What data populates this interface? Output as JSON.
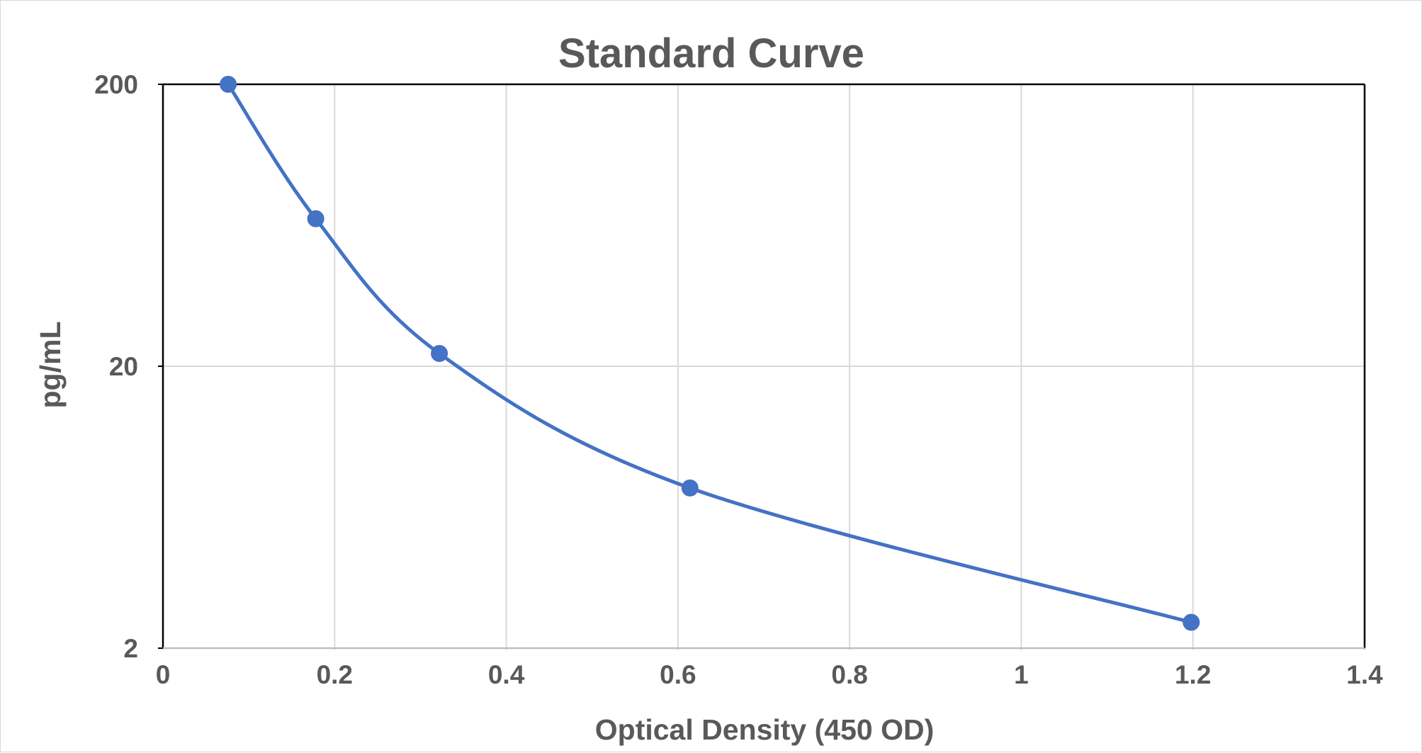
{
  "chart_data": {
    "type": "scatter",
    "title": "Standard Curve",
    "xlabel": "Optical Density (450 OD)",
    "ylabel": "pg/mL",
    "xlim": [
      0,
      1.4
    ],
    "ylim": [
      2,
      200
    ],
    "yscale": "log",
    "grid": true,
    "legend": "none",
    "smoothed_line": true,
    "x_ticks": [
      "0",
      "0.2",
      "0.4",
      "0.6",
      "0.8",
      "1",
      "1.2",
      "1.4"
    ],
    "x_tick_values": [
      0,
      0.2,
      0.4,
      0.6,
      0.8,
      1.0,
      1.2,
      1.4
    ],
    "y_ticks": [
      "2",
      "20",
      "200"
    ],
    "y_tick_values": [
      2,
      20,
      200
    ],
    "series": [
      {
        "x": [
          0.076,
          0.178,
          0.322,
          0.614,
          1.198
        ],
        "y": [
          200,
          66.7,
          22.2,
          7.4,
          2.47
        ]
      }
    ],
    "colors": {
      "series": "#4472C4",
      "text": "#595959",
      "grid": "#d9d9d9",
      "frame": "#000000"
    }
  }
}
